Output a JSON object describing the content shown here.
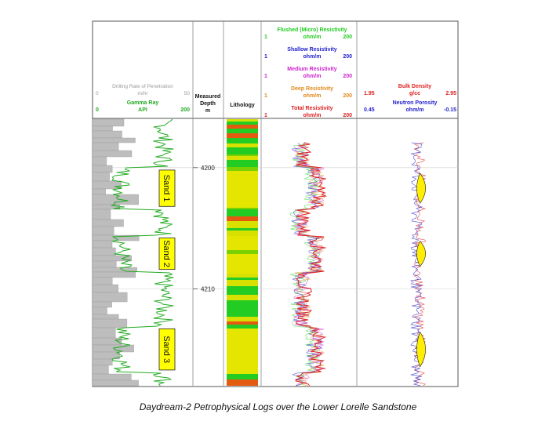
{
  "caption": "Daydream-2 Petrophysical Logs over the Lower Lorelle Sandstone",
  "chart_data": {
    "type": "well-log",
    "depth_axis": {
      "label": "Measured Depth",
      "unit": "m",
      "range": [
        4196,
        4218
      ],
      "ticks": [
        4200,
        4210
      ]
    },
    "tracks": {
      "gamma_ray": {
        "name": "Gamma Ray",
        "unit": "API",
        "min": "0",
        "max": "200",
        "color": "#22aa22"
      },
      "rop": {
        "name": "Drilling Rate of Penetration",
        "unit": "m/hr",
        "min": "0",
        "max": "50",
        "color": "#999999"
      },
      "lithology": {
        "label": "Lithology"
      },
      "resistivity": [
        {
          "name": "Flushed (Micro) Resistivity",
          "unit": "ohm/m",
          "min": "1",
          "max": "200",
          "color": "#22cc22"
        },
        {
          "name": "Shallow Resistivity",
          "unit": "ohm/m",
          "min": "1",
          "max": "200",
          "color": "#2222cc"
        },
        {
          "name": "Medium Resistivity",
          "unit": "ohm/m",
          "min": "1",
          "max": "200",
          "color": "#cc22cc"
        },
        {
          "name": "Deep Resistivity",
          "unit": "ohm/m",
          "min": "1",
          "max": "200",
          "color": "#e08a1a"
        },
        {
          "name": "Total Resistivity",
          "unit": "ohm/m",
          "min": "1",
          "max": "200",
          "color": "#dd2222"
        }
      ],
      "density": {
        "name": "Bulk Density",
        "unit": "g/cc",
        "min": "1.95",
        "max": "2.95",
        "color": "#dd2222"
      },
      "neutron": {
        "name": "Neutron Porosity",
        "unit": "ohm/m",
        "min": "0.45",
        "max": "-0.15",
        "color": "#2222cc"
      }
    },
    "sands": [
      {
        "label": "Sand 1",
        "top": 4200.2,
        "base": 4203.2
      },
      {
        "label": "Sand 2",
        "top": 4205.8,
        "base": 4208.4
      },
      {
        "label": "Sand 3",
        "top": 4213.3,
        "base": 4216.7
      }
    ]
  }
}
